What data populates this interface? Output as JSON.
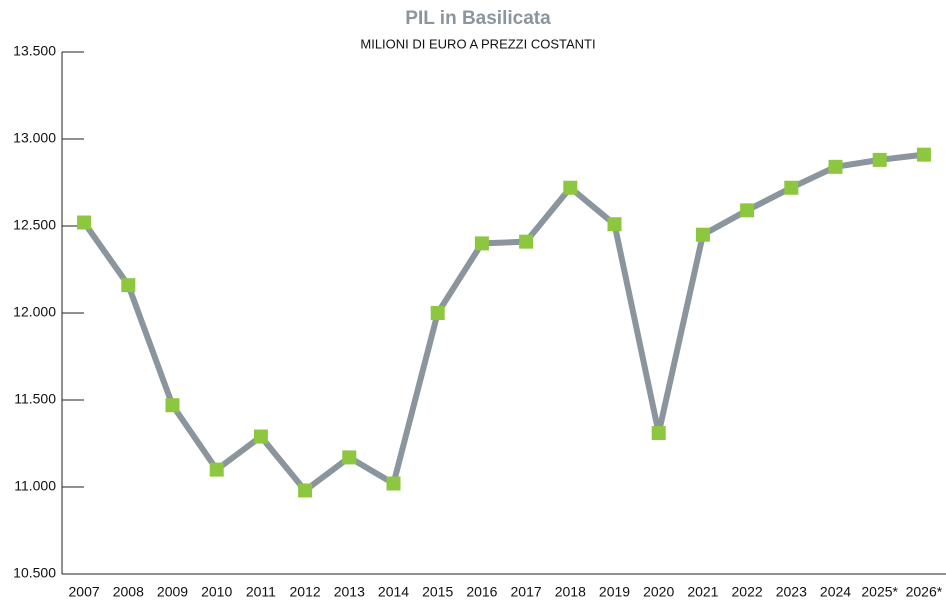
{
  "chart_data": {
    "type": "line",
    "title": "PIL in Basilicata",
    "subtitle": "MILIONI DI EURO A PREZZI COSTANTI",
    "categories": [
      "2007",
      "2008",
      "2009",
      "2010",
      "2011",
      "2012",
      "2013",
      "2014",
      "2015",
      "2016",
      "2017",
      "2018",
      "2019",
      "2020",
      "2021",
      "2022",
      "2023",
      "2024",
      "2025*",
      "2026*"
    ],
    "series": [
      {
        "name": "PIL",
        "color": "#8a959d",
        "marker_color": "#8dc63f",
        "values": [
          12520,
          12160,
          11470,
          11100,
          11290,
          10980,
          11170,
          11020,
          12000,
          12400,
          12410,
          12720,
          12510,
          11310,
          12450,
          12590,
          12720,
          12840,
          12880,
          12910
        ]
      }
    ],
    "ylim": [
      10500,
      13500
    ],
    "yticks": [
      {
        "value": 10500,
        "label": "10.500"
      },
      {
        "value": 11000,
        "label": "11.000"
      },
      {
        "value": 11500,
        "label": "11.500"
      },
      {
        "value": 12000,
        "label": "12.000"
      },
      {
        "value": 12500,
        "label": "12.500"
      },
      {
        "value": 13000,
        "label": "13.000"
      },
      {
        "value": 13500,
        "label": "13.500"
      }
    ],
    "grid": false
  }
}
